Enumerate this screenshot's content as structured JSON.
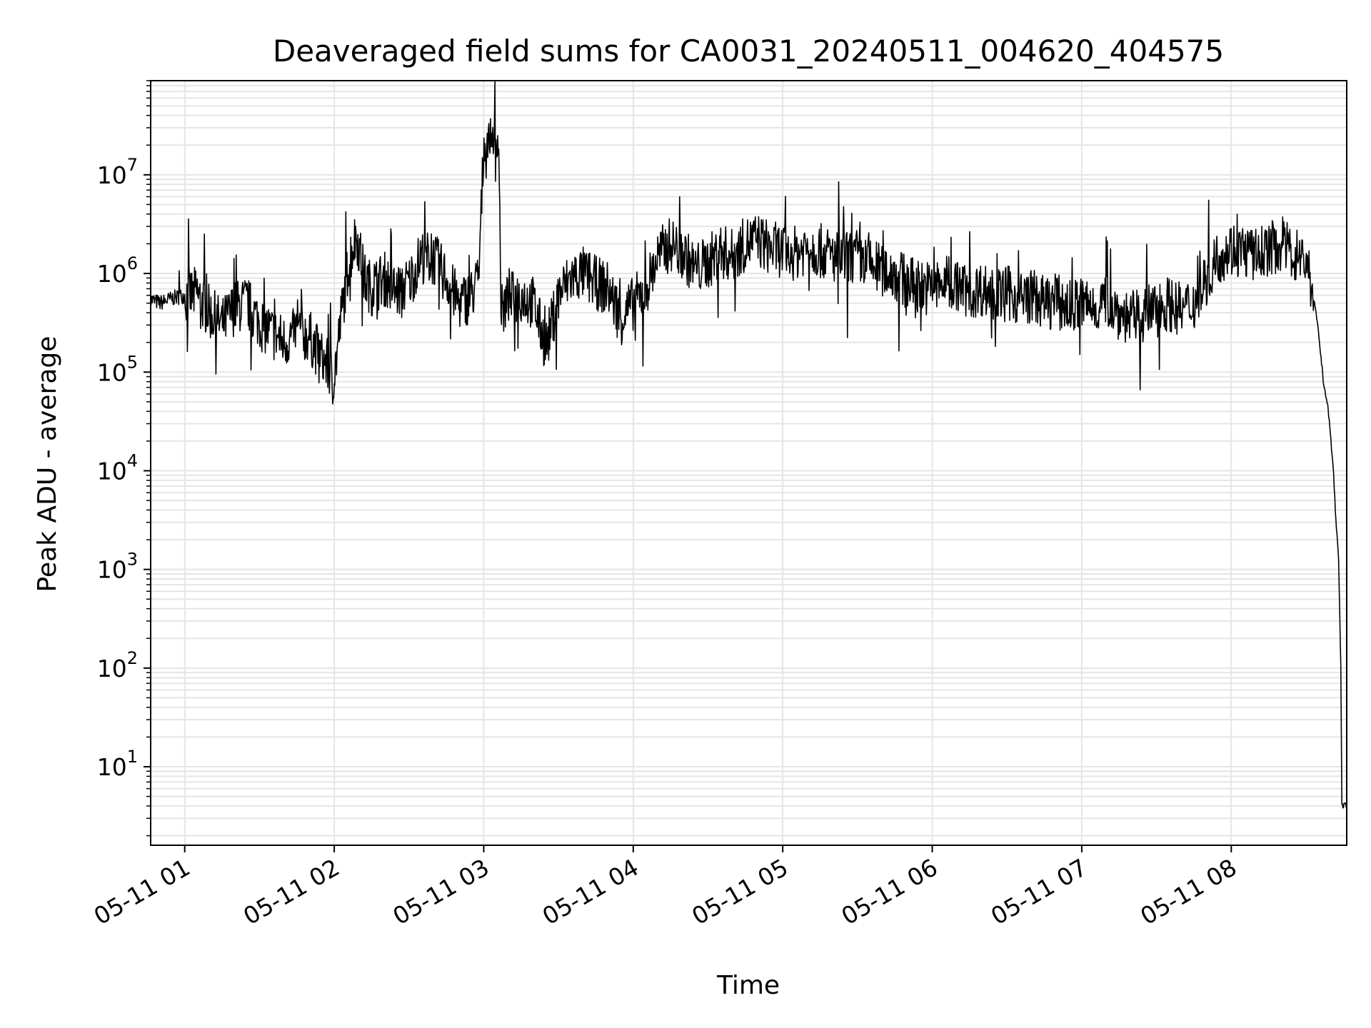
{
  "chart_data": {
    "type": "line",
    "title": "Deaveraged field sums for CA0031_20240511_004620_404575",
    "xlabel": "Time",
    "ylabel": "Peak ADU - average",
    "yscale": "log",
    "ylim": [
      1.6,
      90000000
    ],
    "xlim": [
      "05-11 00:46:20",
      "05-11 08:46:20"
    ],
    "grid": true,
    "legend": "none",
    "line_color": "#000000",
    "grid_color": "#e5e5e5",
    "x_ticks": [
      "05-11 01",
      "05-11 02",
      "05-11 03",
      "05-11 04",
      "05-11 05",
      "05-11 06",
      "05-11 07",
      "05-11 08"
    ],
    "y_ticks": [
      {
        "base": "10",
        "exp": "1"
      },
      {
        "base": "10",
        "exp": "2"
      },
      {
        "base": "10",
        "exp": "3"
      },
      {
        "base": "10",
        "exp": "4"
      },
      {
        "base": "10",
        "exp": "5"
      },
      {
        "base": "10",
        "exp": "6"
      },
      {
        "base": "10",
        "exp": "7"
      }
    ],
    "series": [
      {
        "points": [
          [
            "05-11 00:46",
            550000
          ],
          [
            "05-11 00:50",
            500000
          ],
          [
            "05-11 00:55",
            560000
          ],
          [
            "05-11 01:00",
            600000
          ],
          [
            "05-11 01:05",
            620000
          ],
          [
            "05-11 01:10",
            400000
          ],
          [
            "05-11 01:15",
            300000
          ],
          [
            "05-11 01:20",
            450000
          ],
          [
            "05-11 01:25",
            500000
          ],
          [
            "05-11 01:30",
            320000
          ],
          [
            "05-11 01:35",
            250000
          ],
          [
            "05-11 01:40",
            200000
          ],
          [
            "05-11 01:45",
            260000
          ],
          [
            "05-11 01:50",
            230000
          ],
          [
            "05-11 01:55",
            140000
          ],
          [
            "05-11 02:00",
            90000
          ],
          [
            "05-11 02:03",
            400000
          ],
          [
            "05-11 02:06",
            1400000
          ],
          [
            "05-11 02:09",
            2500000
          ],
          [
            "05-11 02:12",
            900000
          ],
          [
            "05-11 02:15",
            700000
          ],
          [
            "05-11 02:20",
            900000
          ],
          [
            "05-11 02:25",
            650000
          ],
          [
            "05-11 02:30",
            800000
          ],
          [
            "05-11 02:35",
            1500000
          ],
          [
            "05-11 02:40",
            1400000
          ],
          [
            "05-11 02:45",
            900000
          ],
          [
            "05-11 02:50",
            500000
          ],
          [
            "05-11 02:55",
            600000
          ],
          [
            "05-11 02:58",
            900000
          ],
          [
            "05-11 03:00",
            20000000
          ],
          [
            "05-11 03:03",
            25000000
          ],
          [
            "05-11 03:06",
            22000000
          ],
          [
            "05-11 03:07",
            400000
          ],
          [
            "05-11 03:10",
            550000
          ],
          [
            "05-11 03:15",
            600000
          ],
          [
            "05-11 03:20",
            500000
          ],
          [
            "05-11 03:25",
            180000
          ],
          [
            "05-11 03:30",
            600000
          ],
          [
            "05-11 03:35",
            900000
          ],
          [
            "05-11 03:40",
            1000000
          ],
          [
            "05-11 03:45",
            800000
          ],
          [
            "05-11 03:50",
            700000
          ],
          [
            "05-11 03:55",
            350000
          ],
          [
            "05-11 04:00",
            500000
          ],
          [
            "05-11 04:05",
            700000
          ],
          [
            "05-11 04:10",
            1500000
          ],
          [
            "05-11 04:15",
            2000000
          ],
          [
            "05-11 04:20",
            1600000
          ],
          [
            "05-11 04:25",
            1100000
          ],
          [
            "05-11 04:30",
            1300000
          ],
          [
            "05-11 04:35",
            1700000
          ],
          [
            "05-11 04:40",
            1500000
          ],
          [
            "05-11 04:45",
            2000000
          ],
          [
            "05-11 04:50",
            2200000
          ],
          [
            "05-11 04:55",
            1800000
          ],
          [
            "05-11 05:00",
            1700000
          ],
          [
            "05-11 05:05",
            1600000
          ],
          [
            "05-11 05:10",
            1900000
          ],
          [
            "05-11 05:15",
            1700000
          ],
          [
            "05-11 05:20",
            1500000
          ],
          [
            "05-11 05:25",
            1400000
          ],
          [
            "05-11 05:30",
            1500000
          ],
          [
            "05-11 05:35",
            1200000
          ],
          [
            "05-11 05:40",
            1100000
          ],
          [
            "05-11 05:45",
            1000000
          ],
          [
            "05-11 05:50",
            800000
          ],
          [
            "05-11 05:55",
            750000
          ],
          [
            "05-11 06:00",
            700000
          ],
          [
            "05-11 06:05",
            800000
          ],
          [
            "05-11 06:10",
            750000
          ],
          [
            "05-11 06:15",
            650000
          ],
          [
            "05-11 06:20",
            700000
          ],
          [
            "05-11 06:25",
            600000
          ],
          [
            "05-11 06:30",
            650000
          ],
          [
            "05-11 06:35",
            550000
          ],
          [
            "05-11 06:40",
            600000
          ],
          [
            "05-11 06:45",
            500000
          ],
          [
            "05-11 06:50",
            520000
          ],
          [
            "05-11 06:55",
            450000
          ],
          [
            "05-11 07:00",
            500000
          ],
          [
            "05-11 07:05",
            450000
          ],
          [
            "05-11 07:10",
            550000
          ],
          [
            "05-11 07:15",
            400000
          ],
          [
            "05-11 07:20",
            350000
          ],
          [
            "05-11 07:25",
            380000
          ],
          [
            "05-11 07:30",
            450000
          ],
          [
            "05-11 07:35",
            500000
          ],
          [
            "05-11 07:40",
            420000
          ],
          [
            "05-11 07:45",
            500000
          ],
          [
            "05-11 07:50",
            900000
          ],
          [
            "05-11 07:55",
            1500000
          ],
          [
            "05-11 08:00",
            1800000
          ],
          [
            "05-11 08:05",
            1700000
          ],
          [
            "05-11 08:10",
            1500000
          ],
          [
            "05-11 08:15",
            1800000
          ],
          [
            "05-11 08:20",
            1900000
          ],
          [
            "05-11 08:25",
            1600000
          ],
          [
            "05-11 08:30",
            1400000
          ],
          [
            "05-11 08:33",
            600000
          ],
          [
            "05-11 08:35",
            250000
          ],
          [
            "05-11 08:37",
            80000
          ],
          [
            "05-11 08:39",
            40000
          ],
          [
            "05-11 08:41",
            10000
          ],
          [
            "05-11 08:42",
            3000
          ],
          [
            "05-11 08:43",
            1500
          ],
          [
            "05-11 08:44",
            100
          ],
          [
            "05-11 08:44:20",
            4
          ],
          [
            "05-11 08:46",
            4
          ]
        ]
      }
    ]
  }
}
